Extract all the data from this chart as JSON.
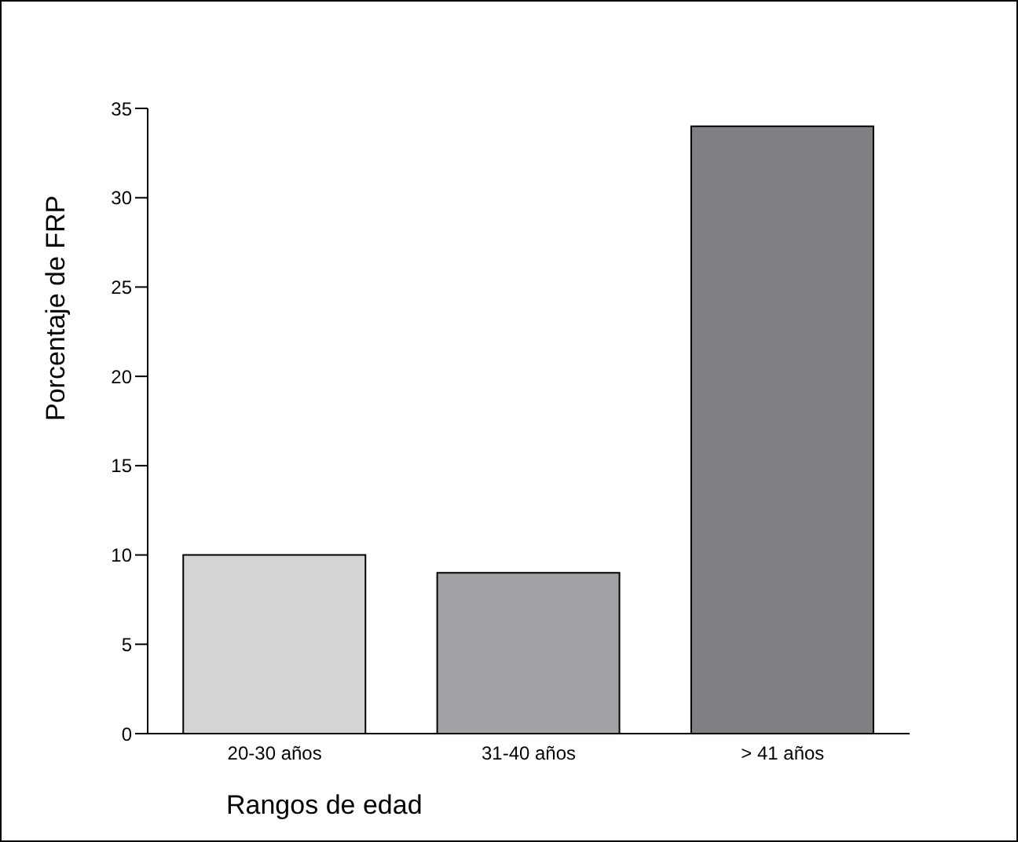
{
  "chart_data": {
    "type": "bar",
    "xlabel": "Rangos de edad",
    "ylabel": "Porcentaje de FRP",
    "categories": [
      "20-30 años",
      "31-40 años",
      "> 41 años"
    ],
    "values": [
      10,
      9,
      34
    ],
    "colors": [
      "#d3d4d6",
      "#a1a2a6",
      "#7f8084"
    ],
    "ylim": [
      0,
      35
    ],
    "yticks": [
      0,
      5,
      10,
      15,
      20,
      25,
      30,
      35
    ]
  }
}
